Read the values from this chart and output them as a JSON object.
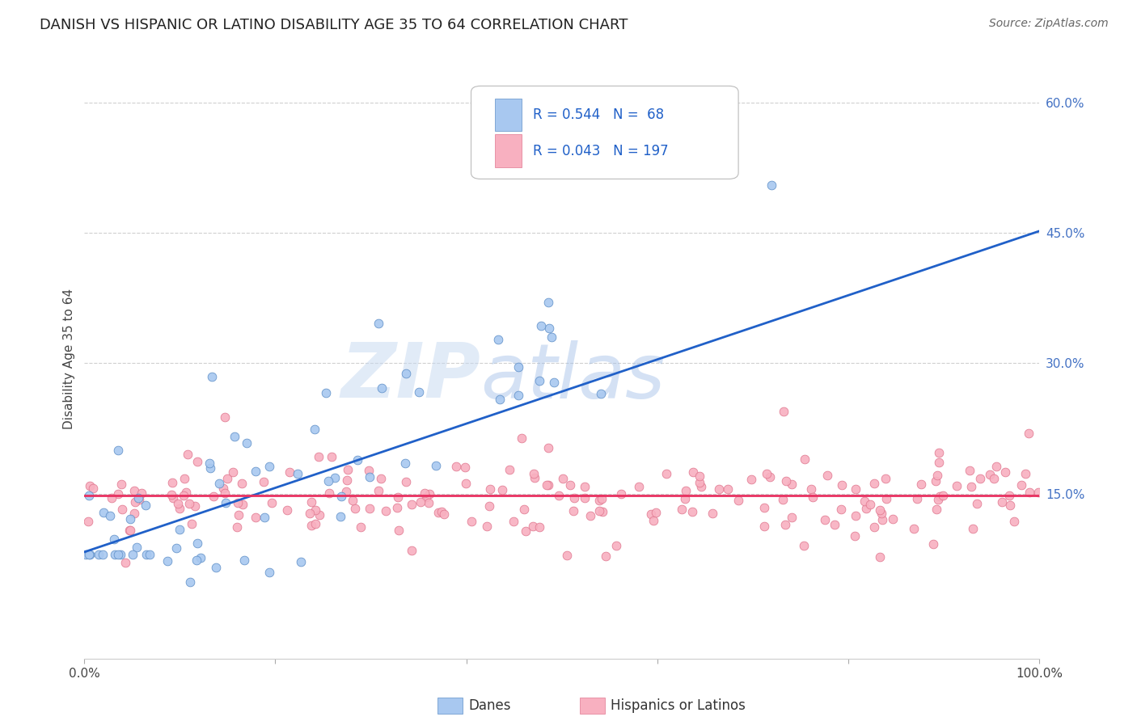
{
  "title": "DANISH VS HISPANIC OR LATINO DISABILITY AGE 35 TO 64 CORRELATION CHART",
  "source": "Source: ZipAtlas.com",
  "ylabel": "Disability Age 35 to 64",
  "xlim": [
    0,
    1
  ],
  "ylim": [
    -0.04,
    0.65
  ],
  "xticks": [
    0.0,
    0.2,
    0.4,
    0.6,
    0.8,
    1.0
  ],
  "xticklabels": [
    "0.0%",
    "",
    "",
    "",
    "",
    "100.0%"
  ],
  "yticks": [
    0.15,
    0.3,
    0.45,
    0.6
  ],
  "yticklabels": [
    "15.0%",
    "30.0%",
    "45.0%",
    "60.0%"
  ],
  "danes_color": "#A8C8F0",
  "danes_edge_color": "#6090C8",
  "hispanic_color": "#F8B0C0",
  "hispanic_edge_color": "#E07890",
  "danes_line_color": "#2060C8",
  "hispanic_line_color": "#E83060",
  "R_danes": 0.544,
  "N_danes": 68,
  "R_hispanic": 0.043,
  "N_hispanic": 197,
  "legend_label_danes": "Danes",
  "legend_label_hispanic": "Hispanics or Latinos",
  "danes_line_start_x": 0.0,
  "danes_line_start_y": 0.083,
  "danes_line_end_x": 1.0,
  "danes_line_end_y": 0.452,
  "hispanic_line_y": 0.148,
  "background_color": "#ffffff",
  "grid_color": "#d0d0d0",
  "title_fontsize": 13,
  "axis_label_fontsize": 11,
  "tick_fontsize": 11,
  "legend_fontsize": 12,
  "source_fontsize": 10
}
